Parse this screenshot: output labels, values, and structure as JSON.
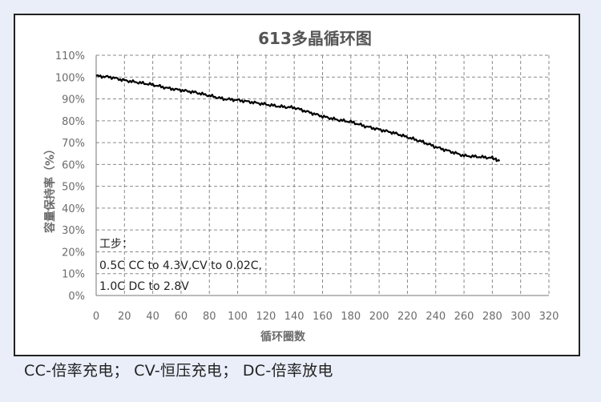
{
  "chart_data": {
    "type": "line",
    "title": "613多晶循环图",
    "xlabel": "循环圈数",
    "ylabel": "容量保持率（%）",
    "xlim": [
      0,
      320
    ],
    "ylim": [
      0,
      110
    ],
    "x_ticks": [
      "0",
      "20",
      "40",
      "60",
      "80",
      "100",
      "120",
      "140",
      "160",
      "180",
      "200",
      "220",
      "240",
      "260",
      "280",
      "300",
      "320"
    ],
    "y_ticks": [
      "0%",
      "10%",
      "20%",
      "30%",
      "40%",
      "50%",
      "60%",
      "70%",
      "80%",
      "90%",
      "100%",
      "110%"
    ],
    "grid": true,
    "legend": "none",
    "series": [
      {
        "color": "#000000",
        "x": [
          0,
          10,
          20,
          30,
          40,
          50,
          60,
          70,
          80,
          90,
          100,
          110,
          120,
          130,
          140,
          150,
          160,
          170,
          180,
          190,
          200,
          210,
          220,
          230,
          240,
          250,
          260,
          270,
          280,
          285
        ],
        "y": [
          100.5,
          100,
          98.5,
          97.5,
          96.5,
          95,
          94,
          93,
          91.5,
          90,
          89.5,
          88.5,
          87.5,
          86.5,
          86,
          84,
          82,
          80.5,
          79.5,
          77.5,
          76,
          74.5,
          72.5,
          70.5,
          68,
          66,
          64,
          63.5,
          63,
          61.5
        ]
      }
    ],
    "annotations": [
      "工步：",
      "0.5C CC to 4.3V,CV to 0.02C,",
      "1.0C DC to 2.8V"
    ]
  },
  "caption": "CC-倍率充电；  CV-恒压充电；  DC-倍率放电"
}
